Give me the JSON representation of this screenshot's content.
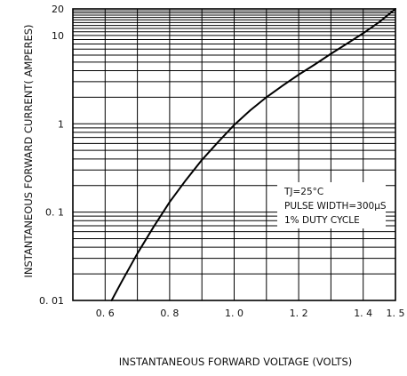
{
  "chart_data": {
    "type": "line",
    "title": "",
    "xlabel": "INSTANTANEOUS FORWARD VOLTAGE (VOLTS)",
    "ylabel": "INSTANTANEOUS FORWARD CURRENT( AMPERES)",
    "x_scale": "linear",
    "y_scale": "log",
    "xlim": [
      0.5,
      1.5
    ],
    "ylim": [
      0.01,
      20
    ],
    "grid": true,
    "x_ticks": [
      {
        "value": 0.6,
        "label": "0. 6"
      },
      {
        "value": 0.8,
        "label": "0. 8"
      },
      {
        "value": 1.0,
        "label": "1. 0"
      },
      {
        "value": 1.2,
        "label": "1. 2"
      },
      {
        "value": 1.4,
        "label": "1. 4"
      },
      {
        "value": 1.5,
        "label": "1. 5"
      }
    ],
    "y_ticks": [
      {
        "value": 0.01,
        "label": "0. 01"
      },
      {
        "value": 0.1,
        "label": "0. 1"
      },
      {
        "value": 1,
        "label": "1"
      },
      {
        "value": 10,
        "label": "10"
      },
      {
        "value": 20,
        "label": "20"
      }
    ],
    "series": [
      {
        "x": [
          0.62,
          0.65,
          0.7,
          0.75,
          0.8,
          0.85,
          0.9,
          0.95,
          1.0,
          1.05,
          1.1,
          1.15,
          1.2,
          1.25,
          1.3,
          1.35,
          1.4,
          1.45,
          1.5
        ],
        "y": [
          0.01,
          0.016,
          0.034,
          0.068,
          0.13,
          0.23,
          0.39,
          0.62,
          0.97,
          1.42,
          2.0,
          2.7,
          3.6,
          4.7,
          6.2,
          8.1,
          10.6,
          14.2,
          20
        ]
      }
    ],
    "annotation": {
      "lines": [
        "TJ=25°C",
        "PULSE WIDTH=300μS",
        "1% DUTY CYCLE"
      ]
    }
  }
}
